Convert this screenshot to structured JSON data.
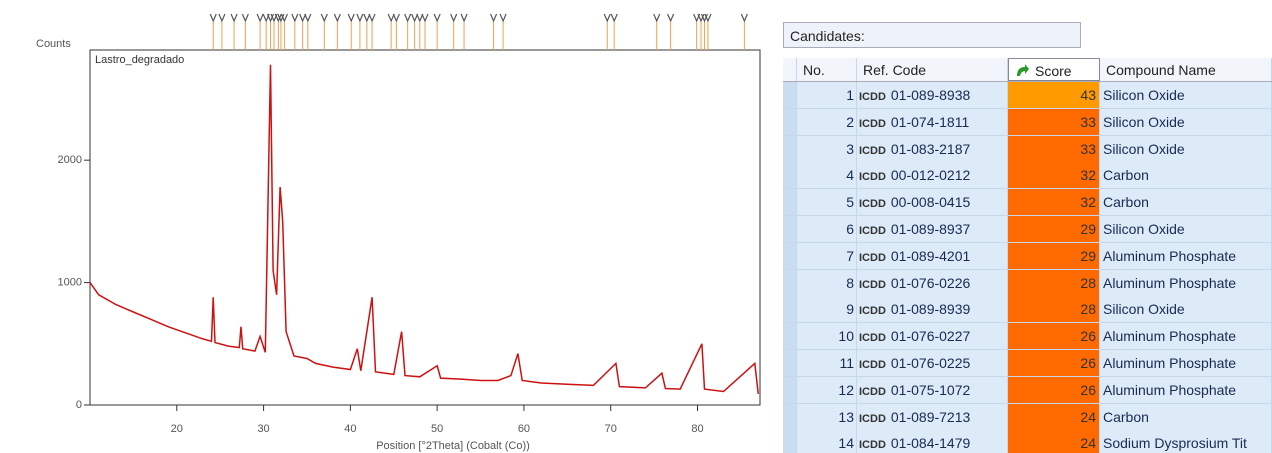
{
  "chart_data": {
    "type": "line",
    "y_axis_label": "Counts",
    "sample_label": "Lastro_degradado",
    "x_axis_label": "Position [°2Theta] (Cobalt (Co))",
    "xlim": [
      10,
      87.2
    ],
    "ylim": [
      0,
      2900
    ],
    "xticks": [
      20,
      30,
      40,
      50,
      60,
      70,
      80
    ],
    "yticks": [
      0,
      1000,
      2000
    ],
    "series": [
      {
        "color": "#cc1111",
        "x": [
          10,
          11,
          13,
          15,
          17,
          19,
          21,
          23,
          24,
          24.2,
          24.4,
          26,
          27.2,
          27.4,
          27.6,
          29,
          29.6,
          30.2,
          30.8,
          31.1,
          31.5,
          31.9,
          32.2,
          32.6,
          33.5,
          35,
          36,
          38,
          40,
          40.8,
          41.2,
          42.5,
          42.9,
          45,
          45.9,
          46.3,
          48,
          50,
          50.4,
          53,
          55,
          57,
          58.5,
          59.3,
          59.8,
          62,
          65,
          68,
          70.6,
          71,
          74,
          75.9,
          76.3,
          78,
          80.5,
          80.8,
          83,
          86.6,
          87
        ],
        "values": [
          1000,
          900,
          820,
          760,
          700,
          640,
          590,
          540,
          520,
          880,
          510,
          480,
          470,
          640,
          460,
          440,
          560,
          430,
          2780,
          1100,
          900,
          1780,
          1500,
          600,
          400,
          380,
          340,
          310,
          290,
          460,
          280,
          880,
          270,
          250,
          600,
          240,
          230,
          320,
          220,
          210,
          200,
          200,
          240,
          420,
          200,
          180,
          170,
          160,
          340,
          150,
          140,
          260,
          135,
          130,
          500,
          130,
          110,
          340,
          90
        ]
      }
    ],
    "reference_peaks": {
      "color": "#f0a050",
      "x": [
        24.2,
        25.2,
        26.6,
        27.9,
        29.6,
        30.3,
        30.8,
        31.2,
        31.7,
        32.0,
        32.4,
        33.6,
        34.5,
        35.1,
        37.0,
        38.5,
        40.1,
        41.1,
        41.9,
        42.5,
        44.7,
        45.3,
        46.6,
        47.4,
        48.0,
        48.6,
        50.0,
        51.9,
        53.1,
        56.5,
        57.6,
        69.6,
        70.4,
        75.3,
        76.9,
        79.9,
        80.4,
        80.8,
        81.2,
        85.4
      ]
    }
  },
  "table": {
    "title": "Candidates:",
    "columns": [
      "No.",
      "Ref. Code",
      "Score",
      "Compound Name"
    ],
    "logo": "ICDD",
    "rows": [
      [
        1,
        "01-089-8938",
        43,
        "Silicon Oxide"
      ],
      [
        2,
        "01-074-1811",
        33,
        "Silicon Oxide"
      ],
      [
        3,
        "01-083-2187",
        33,
        "Silicon Oxide"
      ],
      [
        4,
        "00-012-0212",
        32,
        "Carbon"
      ],
      [
        5,
        "00-008-0415",
        32,
        "Carbon"
      ],
      [
        6,
        "01-089-8937",
        29,
        "Silicon Oxide"
      ],
      [
        7,
        "01-089-4201",
        29,
        "Aluminum Phosphate"
      ],
      [
        8,
        "01-076-0226",
        28,
        "Aluminum Phosphate"
      ],
      [
        9,
        "01-089-8939",
        28,
        "Silicon Oxide"
      ],
      [
        10,
        "01-076-0227",
        26,
        "Aluminum Phosphate"
      ],
      [
        11,
        "01-076-0225",
        26,
        "Aluminum Phosphate"
      ],
      [
        12,
        "01-075-1072",
        26,
        "Aluminum Phosphate"
      ],
      [
        13,
        "01-089-7213",
        24,
        "Carbon"
      ],
      [
        14,
        "01-084-1479",
        24,
        "Sodium Dysprosium Tit"
      ]
    ]
  }
}
